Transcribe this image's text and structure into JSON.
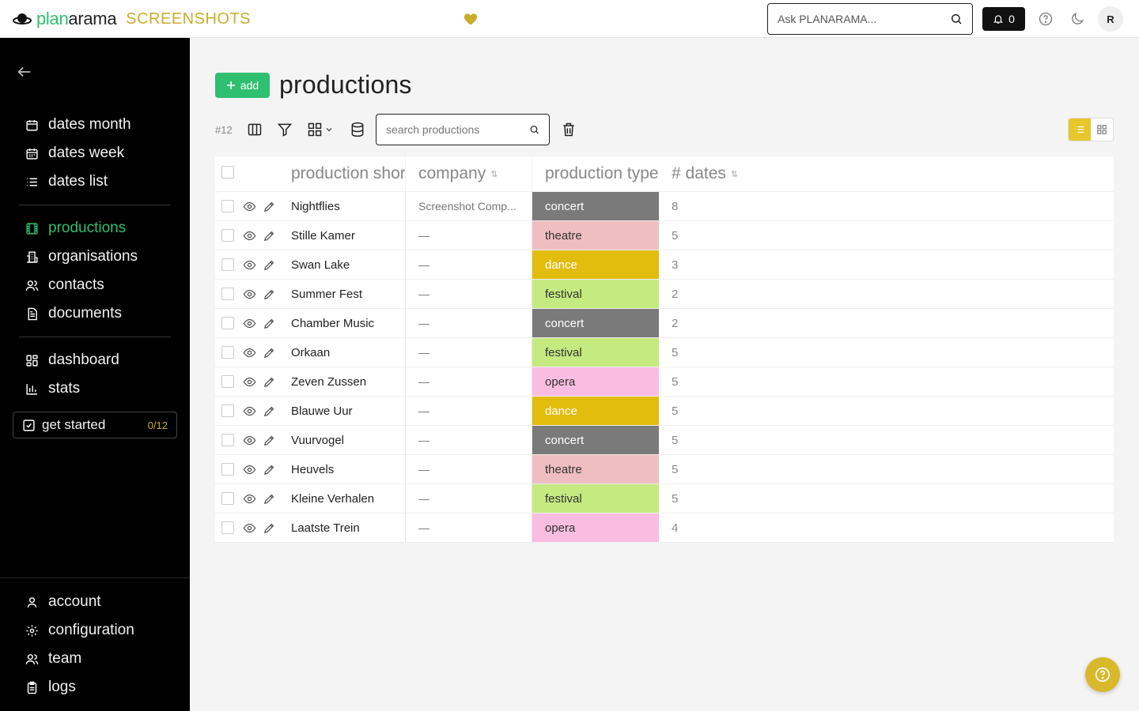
{
  "header": {
    "logo_part1": "plan",
    "logo_part2": "arama",
    "logo_sub": "SCREENSHOTS",
    "ask_placeholder": "Ask PLANARAMA...",
    "notifications_count": "0",
    "avatar_initial": "R"
  },
  "sidebar": {
    "items": [
      {
        "label": "dates month",
        "icon": "calendar-icon"
      },
      {
        "label": "dates week",
        "icon": "calendar-week-icon"
      },
      {
        "label": "dates list",
        "icon": "list-icon"
      },
      {
        "label": "productions",
        "icon": "film-icon"
      },
      {
        "label": "organisations",
        "icon": "building-icon"
      },
      {
        "label": "contacts",
        "icon": "users-icon"
      },
      {
        "label": "documents",
        "icon": "document-icon"
      },
      {
        "label": "dashboard",
        "icon": "dashboard-icon"
      },
      {
        "label": "stats",
        "icon": "bar-chart-icon"
      }
    ],
    "get_started_label": "get started",
    "get_started_count": "0/12",
    "bottom_items": [
      {
        "label": "account",
        "icon": "user-icon"
      },
      {
        "label": "configuration",
        "icon": "gear-icon"
      },
      {
        "label": "team",
        "icon": "team-icon"
      },
      {
        "label": "logs",
        "icon": "clipboard-icon"
      }
    ]
  },
  "main": {
    "add_label": "add",
    "title": "productions",
    "record_count": "#12",
    "search_placeholder": "search productions",
    "columns": {
      "name": "production shor",
      "company": "company",
      "type": "production type",
      "dates": "# dates"
    },
    "sort_glyph": "⇅",
    "rows": [
      {
        "name": "Nightflies",
        "company": "Screenshot Comp...",
        "type": "concert",
        "dates": "8"
      },
      {
        "name": "Stille Kamer",
        "company": "—",
        "type": "theatre",
        "dates": "5"
      },
      {
        "name": "Swan Lake",
        "company": "—",
        "type": "dance",
        "dates": "3"
      },
      {
        "name": "Summer Fest",
        "company": "—",
        "type": "festival",
        "dates": "2"
      },
      {
        "name": "Chamber Music",
        "company": "—",
        "type": "concert",
        "dates": "2"
      },
      {
        "name": "Orkaan",
        "company": "—",
        "type": "festival",
        "dates": "5"
      },
      {
        "name": "Zeven Zussen",
        "company": "—",
        "type": "opera",
        "dates": "5"
      },
      {
        "name": "Blauwe Uur",
        "company": "—",
        "type": "dance",
        "dates": "5"
      },
      {
        "name": "Vuurvogel",
        "company": "—",
        "type": "concert",
        "dates": "5"
      },
      {
        "name": "Heuvels",
        "company": "—",
        "type": "theatre",
        "dates": "5"
      },
      {
        "name": "Kleine Verhalen",
        "company": "—",
        "type": "festival",
        "dates": "5"
      },
      {
        "name": "Laatste Trein",
        "company": "—",
        "type": "opera",
        "dates": "4"
      }
    ]
  },
  "colors": {
    "accent_green": "#2fbf71",
    "accent_gold": "#c9ad2c",
    "concert": "#7a7a7a",
    "theatre": "#efbec0",
    "dance": "#e3bd0e",
    "festival": "#c5ea80",
    "opera": "#f9bde1"
  }
}
